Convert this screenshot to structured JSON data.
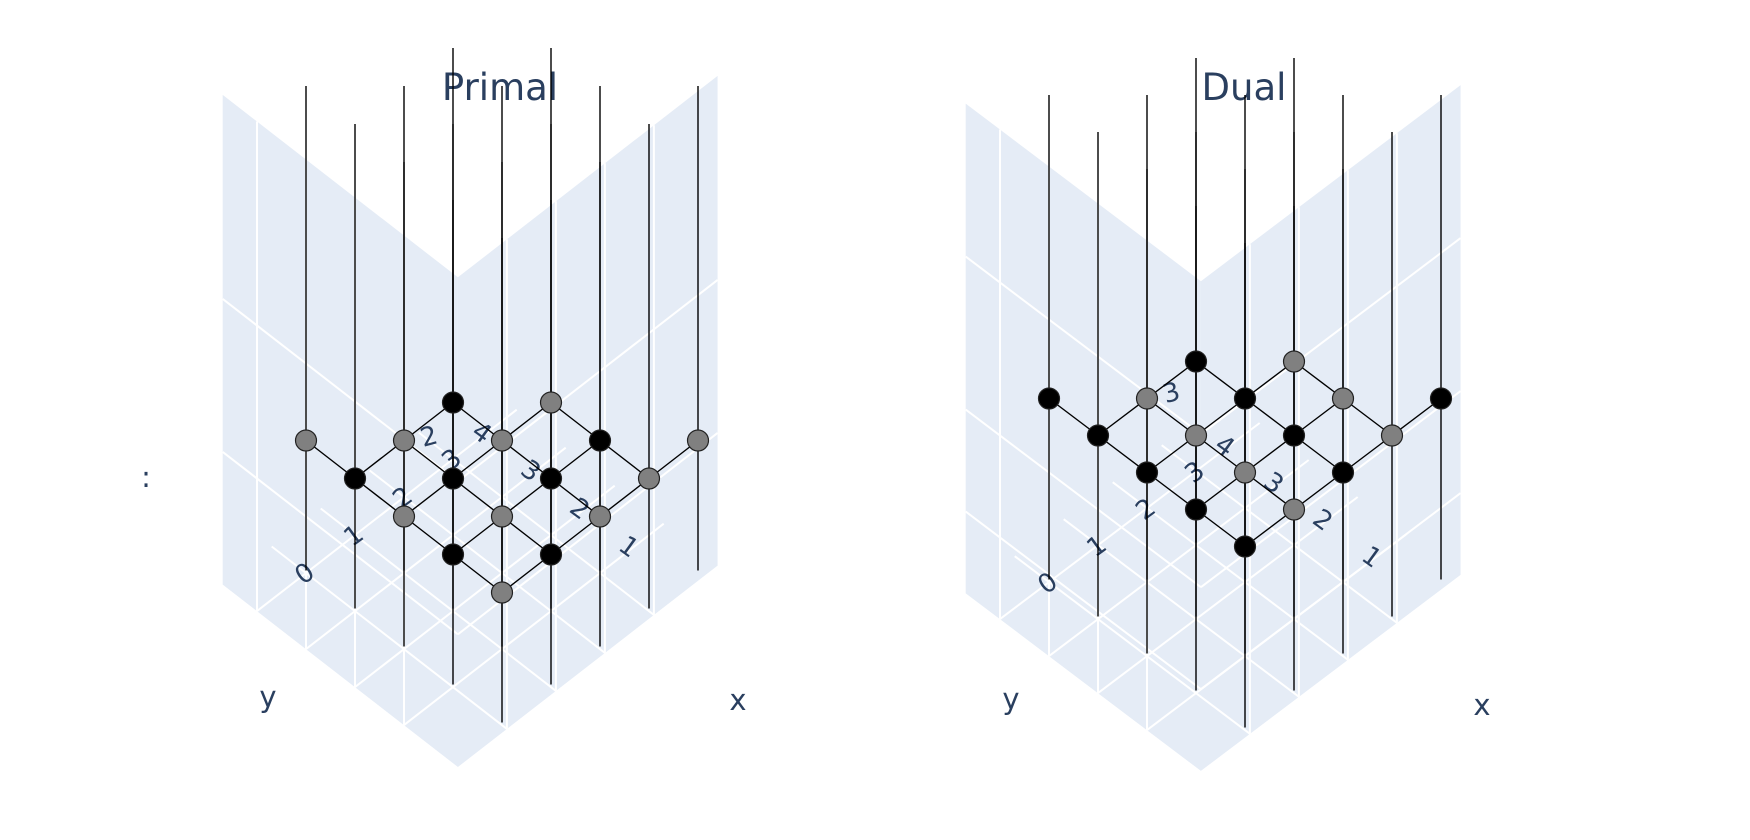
{
  "chart_data": [
    {
      "type": "scatter3d",
      "title": "Primal",
      "axes": {
        "x": {
          "title": "x",
          "ticks": [
            "0",
            "1",
            "2",
            "3"
          ]
        },
        "y": {
          "title": "y",
          "ticks": [
            "1",
            "2",
            "3",
            "4"
          ]
        },
        "z": {
          "title": "z",
          "ticks": [
            "2"
          ]
        }
      },
      "background": "#e5ecf6",
      "grid": true,
      "legend": "none",
      "marker_colors": {
        "black": "#000000",
        "gray": "#808080"
      },
      "points": [
        {
          "x": 0,
          "y": 0,
          "z": 2.5,
          "color": "gray"
        },
        {
          "x": 0,
          "y": 1,
          "z": 2.5,
          "color": "black"
        },
        {
          "x": 0,
          "y": 2,
          "z": 2.5,
          "color": "gray"
        },
        {
          "x": 0,
          "y": 3,
          "z": 2.5,
          "color": "black"
        },
        {
          "x": 0,
          "y": 4,
          "z": 2.5,
          "color": "gray"
        },
        {
          "x": 1,
          "y": 0,
          "z": 2.5,
          "color": "black"
        },
        {
          "x": 1,
          "y": 1,
          "z": 2.5,
          "color": "gray"
        },
        {
          "x": 1,
          "y": 2,
          "z": 2.5,
          "color": "black"
        },
        {
          "x": 1,
          "y": 3,
          "z": 2.5,
          "color": "gray"
        },
        {
          "x": 2,
          "y": 0,
          "z": 2.5,
          "color": "gray"
        },
        {
          "x": 2,
          "y": 1,
          "z": 2.5,
          "color": "black"
        },
        {
          "x": 2,
          "y": 2,
          "z": 2.5,
          "color": "gray"
        },
        {
          "x": 2,
          "y": 3,
          "z": 2.5,
          "color": "black"
        },
        {
          "x": 3,
          "y": 0,
          "z": 2.5,
          "color": "gray"
        },
        {
          "x": 3,
          "y": 1,
          "z": 2.5,
          "color": "black"
        },
        {
          "x": 3,
          "y": 2,
          "z": 2.5,
          "color": "gray"
        },
        {
          "x": 4,
          "y": 0,
          "z": 2.5,
          "color": "gray"
        }
      ]
    },
    {
      "type": "scatter3d",
      "title": "Dual",
      "axes": {
        "x": {
          "title": "x",
          "ticks": [
            "0",
            "1",
            "2",
            "3"
          ]
        },
        "y": {
          "title": "y",
          "ticks": [
            "1",
            "2",
            "3",
            "4"
          ]
        },
        "z": {
          "title": "",
          "ticks": [
            "3"
          ]
        }
      },
      "background": "#e5ecf6",
      "grid": true,
      "legend": "none",
      "marker_colors": {
        "black": "#000000",
        "gray": "#808080"
      },
      "points": [
        {
          "x": 0,
          "y": 0,
          "z": 3.5,
          "color": "black"
        },
        {
          "x": 0,
          "y": 1,
          "z": 3.5,
          "color": "black"
        },
        {
          "x": 0,
          "y": 2,
          "z": 3.5,
          "color": "black"
        },
        {
          "x": 0,
          "y": 3,
          "z": 3.5,
          "color": "black"
        },
        {
          "x": 0,
          "y": 4,
          "z": 3.5,
          "color": "black"
        },
        {
          "x": 1,
          "y": 0,
          "z": 3.5,
          "color": "gray"
        },
        {
          "x": 1,
          "y": 1,
          "z": 3.5,
          "color": "gray"
        },
        {
          "x": 1,
          "y": 2,
          "z": 3.5,
          "color": "gray"
        },
        {
          "x": 1,
          "y": 3,
          "z": 3.5,
          "color": "gray"
        },
        {
          "x": 2,
          "y": 0,
          "z": 3.5,
          "color": "black"
        },
        {
          "x": 2,
          "y": 1,
          "z": 3.5,
          "color": "black"
        },
        {
          "x": 2,
          "y": 2,
          "z": 3.5,
          "color": "black"
        },
        {
          "x": 2,
          "y": 3,
          "z": 3.5,
          "color": "black"
        },
        {
          "x": 3,
          "y": 0,
          "z": 3.5,
          "color": "gray"
        },
        {
          "x": 3,
          "y": 1,
          "z": 3.5,
          "color": "gray"
        },
        {
          "x": 3,
          "y": 2,
          "z": 3.5,
          "color": "gray"
        },
        {
          "x": 4,
          "y": 0,
          "z": 3.5,
          "color": "black"
        }
      ]
    }
  ]
}
